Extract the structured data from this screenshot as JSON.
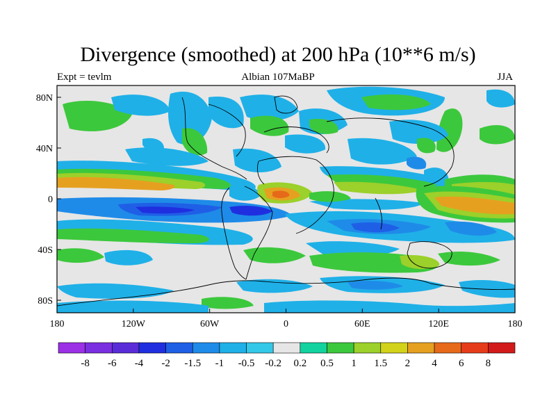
{
  "title": "Divergence (smoothed) at 200 hPa (10**6 m/s)",
  "left_label": "Expt = tevlm",
  "center_label": "Albian   107MaBP",
  "right_label": "JJA",
  "lat_ticks": [
    "80N",
    "40N",
    "0",
    "40S",
    "80S"
  ],
  "lon_ticks": [
    "180",
    "120W",
    "60W",
    "0",
    "60E",
    "120E",
    "180"
  ],
  "colorbar": {
    "labels": [
      "-8",
      "-6",
      "-4",
      "-2",
      "-1.5",
      "-1",
      "-0.5",
      "-0.2",
      "0.2",
      "0.5",
      "1",
      "1.5",
      "2",
      "4",
      "6",
      "8"
    ],
    "colors": [
      "#9b30e6",
      "#7a2fe0",
      "#5a2cd8",
      "#1f2fe0",
      "#1f5fe6",
      "#1f8be8",
      "#1fb0e8",
      "#33c8e8",
      "#e6e6e6",
      "#12d2a0",
      "#3cc83c",
      "#9cd02a",
      "#d2d21a",
      "#e6a020",
      "#e66a1a",
      "#e63c1a",
      "#d21a1a"
    ]
  },
  "colors": {
    "neutral": "#e6e6e6",
    "blue_light": "#1fb0e8",
    "blue_mid": "#1f8be8",
    "blue_strong": "#1f5fe6",
    "blue_deep": "#1f2fe0",
    "green_light": "#12d2a0",
    "green": "#3cc83c",
    "yellow_green": "#9cd02a",
    "yellow": "#d2d21a",
    "orange": "#e6a020",
    "orange_red": "#e66a1a"
  }
}
